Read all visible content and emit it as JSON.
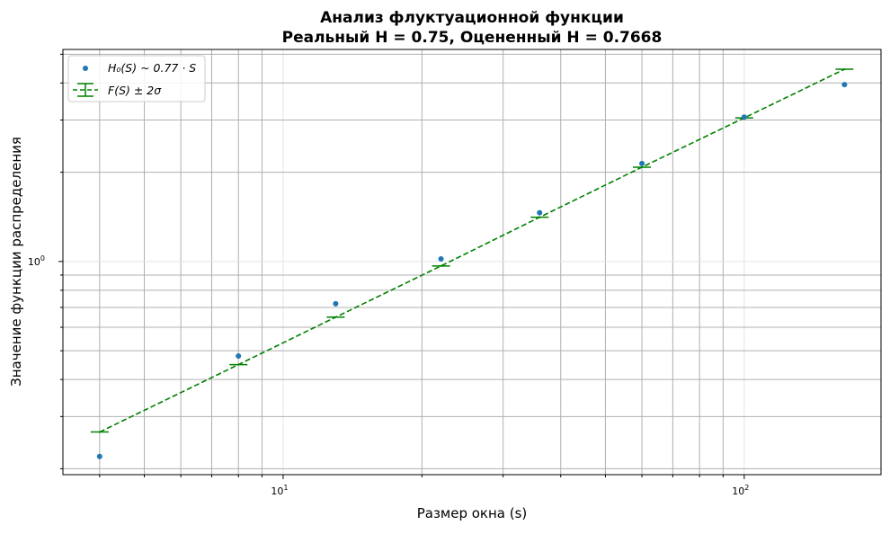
{
  "chart_data": {
    "type": "scatter",
    "title": "Анализ флуктуационной функции",
    "subtitle": "Реальный H = 0.75, Оцененный H = 0.7668",
    "xlabel": "Размер окна (s)",
    "ylabel": "Значение функции распределения",
    "xscale": "log",
    "yscale": "log",
    "xlim": [
      3.33,
      198
    ],
    "ylim": [
      0.191,
      5.19
    ],
    "x_ticks": [
      {
        "value": 10,
        "label": "10",
        "exp": "1"
      },
      {
        "value": 100,
        "label": "10",
        "exp": "2"
      }
    ],
    "y_ticks": [
      {
        "value": 1,
        "label": "10",
        "exp": "0"
      }
    ],
    "grid": true,
    "legend_position": "top-left",
    "x": [
      4,
      8,
      13,
      22,
      36,
      60,
      100,
      165
    ],
    "series": [
      {
        "name": "H₀(S) ~ 0.77 · S",
        "kind": "scatter",
        "color": "#1f77b4",
        "values": [
          0.22,
          0.48,
          0.72,
          1.02,
          1.46,
          2.14,
          3.07,
          3.95
        ]
      },
      {
        "name": "F(S) ± 2σ",
        "kind": "errorbar-line",
        "color": "#008000",
        "values": [
          0.266,
          0.449,
          0.649,
          0.966,
          1.41,
          2.08,
          3.05,
          4.45
        ]
      }
    ]
  }
}
